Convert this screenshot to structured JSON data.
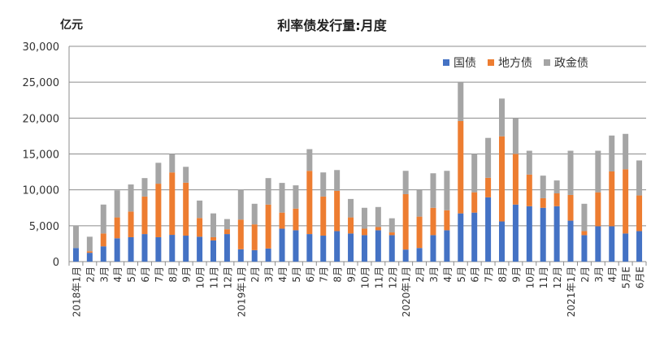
{
  "chart_data": {
    "type": "bar",
    "stacked": true,
    "title": "利率债发行量:月度",
    "ylabel": "亿元",
    "xlabel": "",
    "ylim": [
      0,
      30000
    ],
    "yticks": [
      0,
      5000,
      10000,
      15000,
      20000,
      25000,
      30000
    ],
    "ytick_labels": [
      "0",
      "5,000",
      "10,000",
      "15,000",
      "20,000",
      "25,000",
      "30,000"
    ],
    "grid": true,
    "legend_position": "top-right",
    "categories": [
      "2018年1月",
      "2月",
      "3月",
      "4月",
      "5月",
      "6月",
      "7月",
      "8月",
      "9月",
      "10月",
      "11月",
      "12月",
      "2019年1月",
      "2月",
      "3月",
      "4月",
      "5月",
      "6月",
      "7月",
      "8月",
      "9月",
      "10月",
      "11月",
      "12月",
      "2020年1月",
      "2月",
      "3月",
      "4月",
      "5月",
      "6月",
      "7月",
      "8月",
      "9月",
      "10月",
      "11月",
      "12月",
      "2021年1月",
      "2月",
      "3月",
      "4月",
      "5月E",
      "6月E"
    ],
    "series": [
      {
        "name": "国债",
        "color": "#4472C4",
        "values": [
          1900,
          1230,
          2130,
          3250,
          3400,
          3840,
          3400,
          3730,
          3620,
          3470,
          2950,
          3840,
          1720,
          1600,
          1830,
          4590,
          4370,
          3840,
          3620,
          4250,
          3920,
          3690,
          4370,
          3690,
          1680,
          1900,
          3690,
          4370,
          6720,
          6830,
          8960,
          5600,
          7950,
          7720,
          7500,
          7720,
          5710,
          3690,
          4930,
          4930,
          3920,
          4250
        ]
      },
      {
        "name": "地方债",
        "color": "#ED7D31",
        "values": [
          0,
          220,
          1790,
          2910,
          3580,
          5230,
          7460,
          8700,
          7380,
          2610,
          450,
          670,
          4140,
          3590,
          6120,
          2240,
          3020,
          8810,
          5450,
          5600,
          2240,
          900,
          440,
          380,
          7720,
          4370,
          3810,
          2790,
          12870,
          2830,
          2720,
          11860,
          7050,
          4410,
          1340,
          1790,
          3580,
          560,
          4730,
          7640,
          8950,
          4970
        ]
      },
      {
        "name": "政金债",
        "color": "#A5A5A5",
        "values": [
          3100,
          2020,
          4030,
          3770,
          3770,
          2570,
          2910,
          2570,
          2210,
          2430,
          3320,
          1420,
          4210,
          2870,
          3690,
          4140,
          3240,
          3020,
          3360,
          2910,
          2570,
          2910,
          2800,
          1970,
          3250,
          3690,
          4810,
          5490,
          5410,
          5340,
          5560,
          5260,
          4930,
          3320,
          3140,
          1800,
          6160,
          3810,
          5790,
          5000,
          4930,
          4880
        ]
      }
    ]
  }
}
